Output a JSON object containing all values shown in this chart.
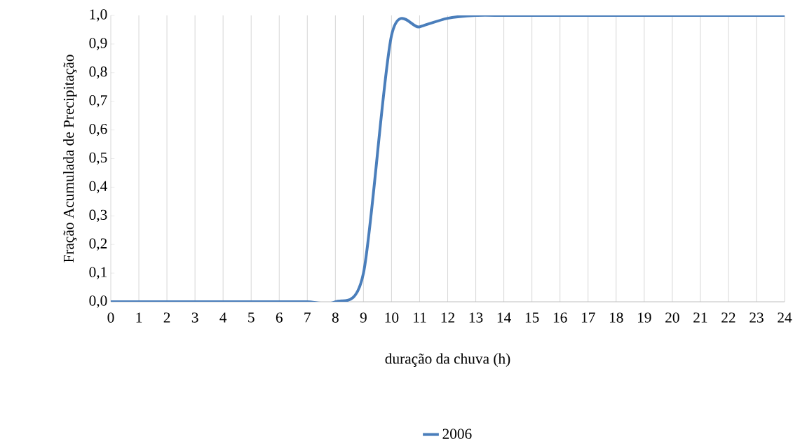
{
  "chart_data": {
    "type": "line",
    "xlabel": "duração da chuva (h)",
    "ylabel": "Fração Acumulada de Precipitação",
    "x": [
      0,
      1,
      2,
      3,
      4,
      5,
      6,
      7,
      8,
      9,
      10,
      11,
      12,
      13,
      14,
      15,
      16,
      17,
      18,
      19,
      20,
      21,
      22,
      23,
      24
    ],
    "series": [
      {
        "name": "2006",
        "color": "#4a7ebb",
        "values": [
          0,
          0,
          0,
          0,
          0,
          0,
          0,
          0,
          0,
          0.1,
          0.93,
          0.96,
          0.99,
          1,
          1,
          1,
          1,
          1,
          1,
          1,
          1,
          1,
          1,
          1,
          1
        ]
      }
    ],
    "xlim": [
      0,
      24
    ],
    "xticks": [
      0,
      1,
      2,
      3,
      4,
      5,
      6,
      7,
      8,
      9,
      10,
      11,
      12,
      13,
      14,
      15,
      16,
      17,
      18,
      19,
      20,
      21,
      22,
      23,
      24
    ],
    "ylim": [
      0,
      1
    ],
    "yticks": [
      {
        "value": 0,
        "label": "0,0"
      },
      {
        "value": 0.1,
        "label": "0,1"
      },
      {
        "value": 0.2,
        "label": "0,2"
      },
      {
        "value": 0.3,
        "label": "0,3"
      },
      {
        "value": 0.4,
        "label": "0,4"
      },
      {
        "value": 0.5,
        "label": "0,5"
      },
      {
        "value": 0.6,
        "label": "0,6"
      },
      {
        "value": 0.7,
        "label": "0,7"
      },
      {
        "value": 0.8,
        "label": "0,8"
      },
      {
        "value": 0.9,
        "label": "0,9"
      },
      {
        "value": 1,
        "label": "1,0"
      }
    ],
    "grid": "x",
    "legend": "bottom",
    "marker": "none",
    "line_style": "solid"
  }
}
